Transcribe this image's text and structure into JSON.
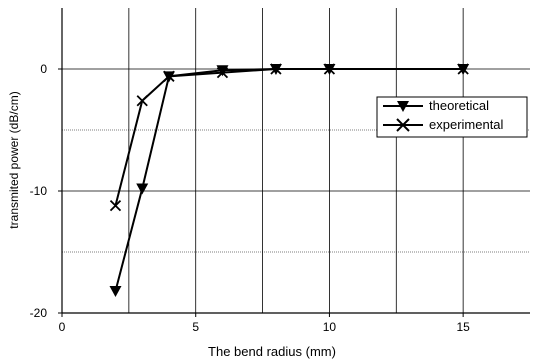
{
  "chart_data": {
    "type": "line",
    "xlabel": "The bend radius (mm)",
    "ylabel": "transmited power (dB/cm)",
    "xlim": [
      0,
      17.5
    ],
    "ylim": [
      -20,
      5
    ],
    "x_ticks": [
      0,
      5,
      10,
      15
    ],
    "y_ticks": [
      0,
      -10,
      -20
    ],
    "grid": {
      "major_vertical": [
        2.5,
        5,
        7.5,
        10,
        12.5,
        15
      ],
      "major_horizontal": [
        0,
        -10
      ],
      "minor_horizontal": [
        -5,
        -15
      ]
    },
    "legend": "right",
    "series": [
      {
        "name": "theoretical",
        "marker": "triangle-down",
        "x": [
          2,
          3,
          4,
          6,
          8,
          10,
          15
        ],
        "y": [
          -18.2,
          -9.8,
          -0.6,
          -0.1,
          0,
          0,
          0
        ]
      },
      {
        "name": "experimental",
        "marker": "x",
        "x": [
          2,
          3,
          4,
          6,
          8,
          10,
          15
        ],
        "y": [
          -11.2,
          -2.6,
          -0.6,
          -0.3,
          0,
          0,
          0
        ]
      }
    ]
  }
}
